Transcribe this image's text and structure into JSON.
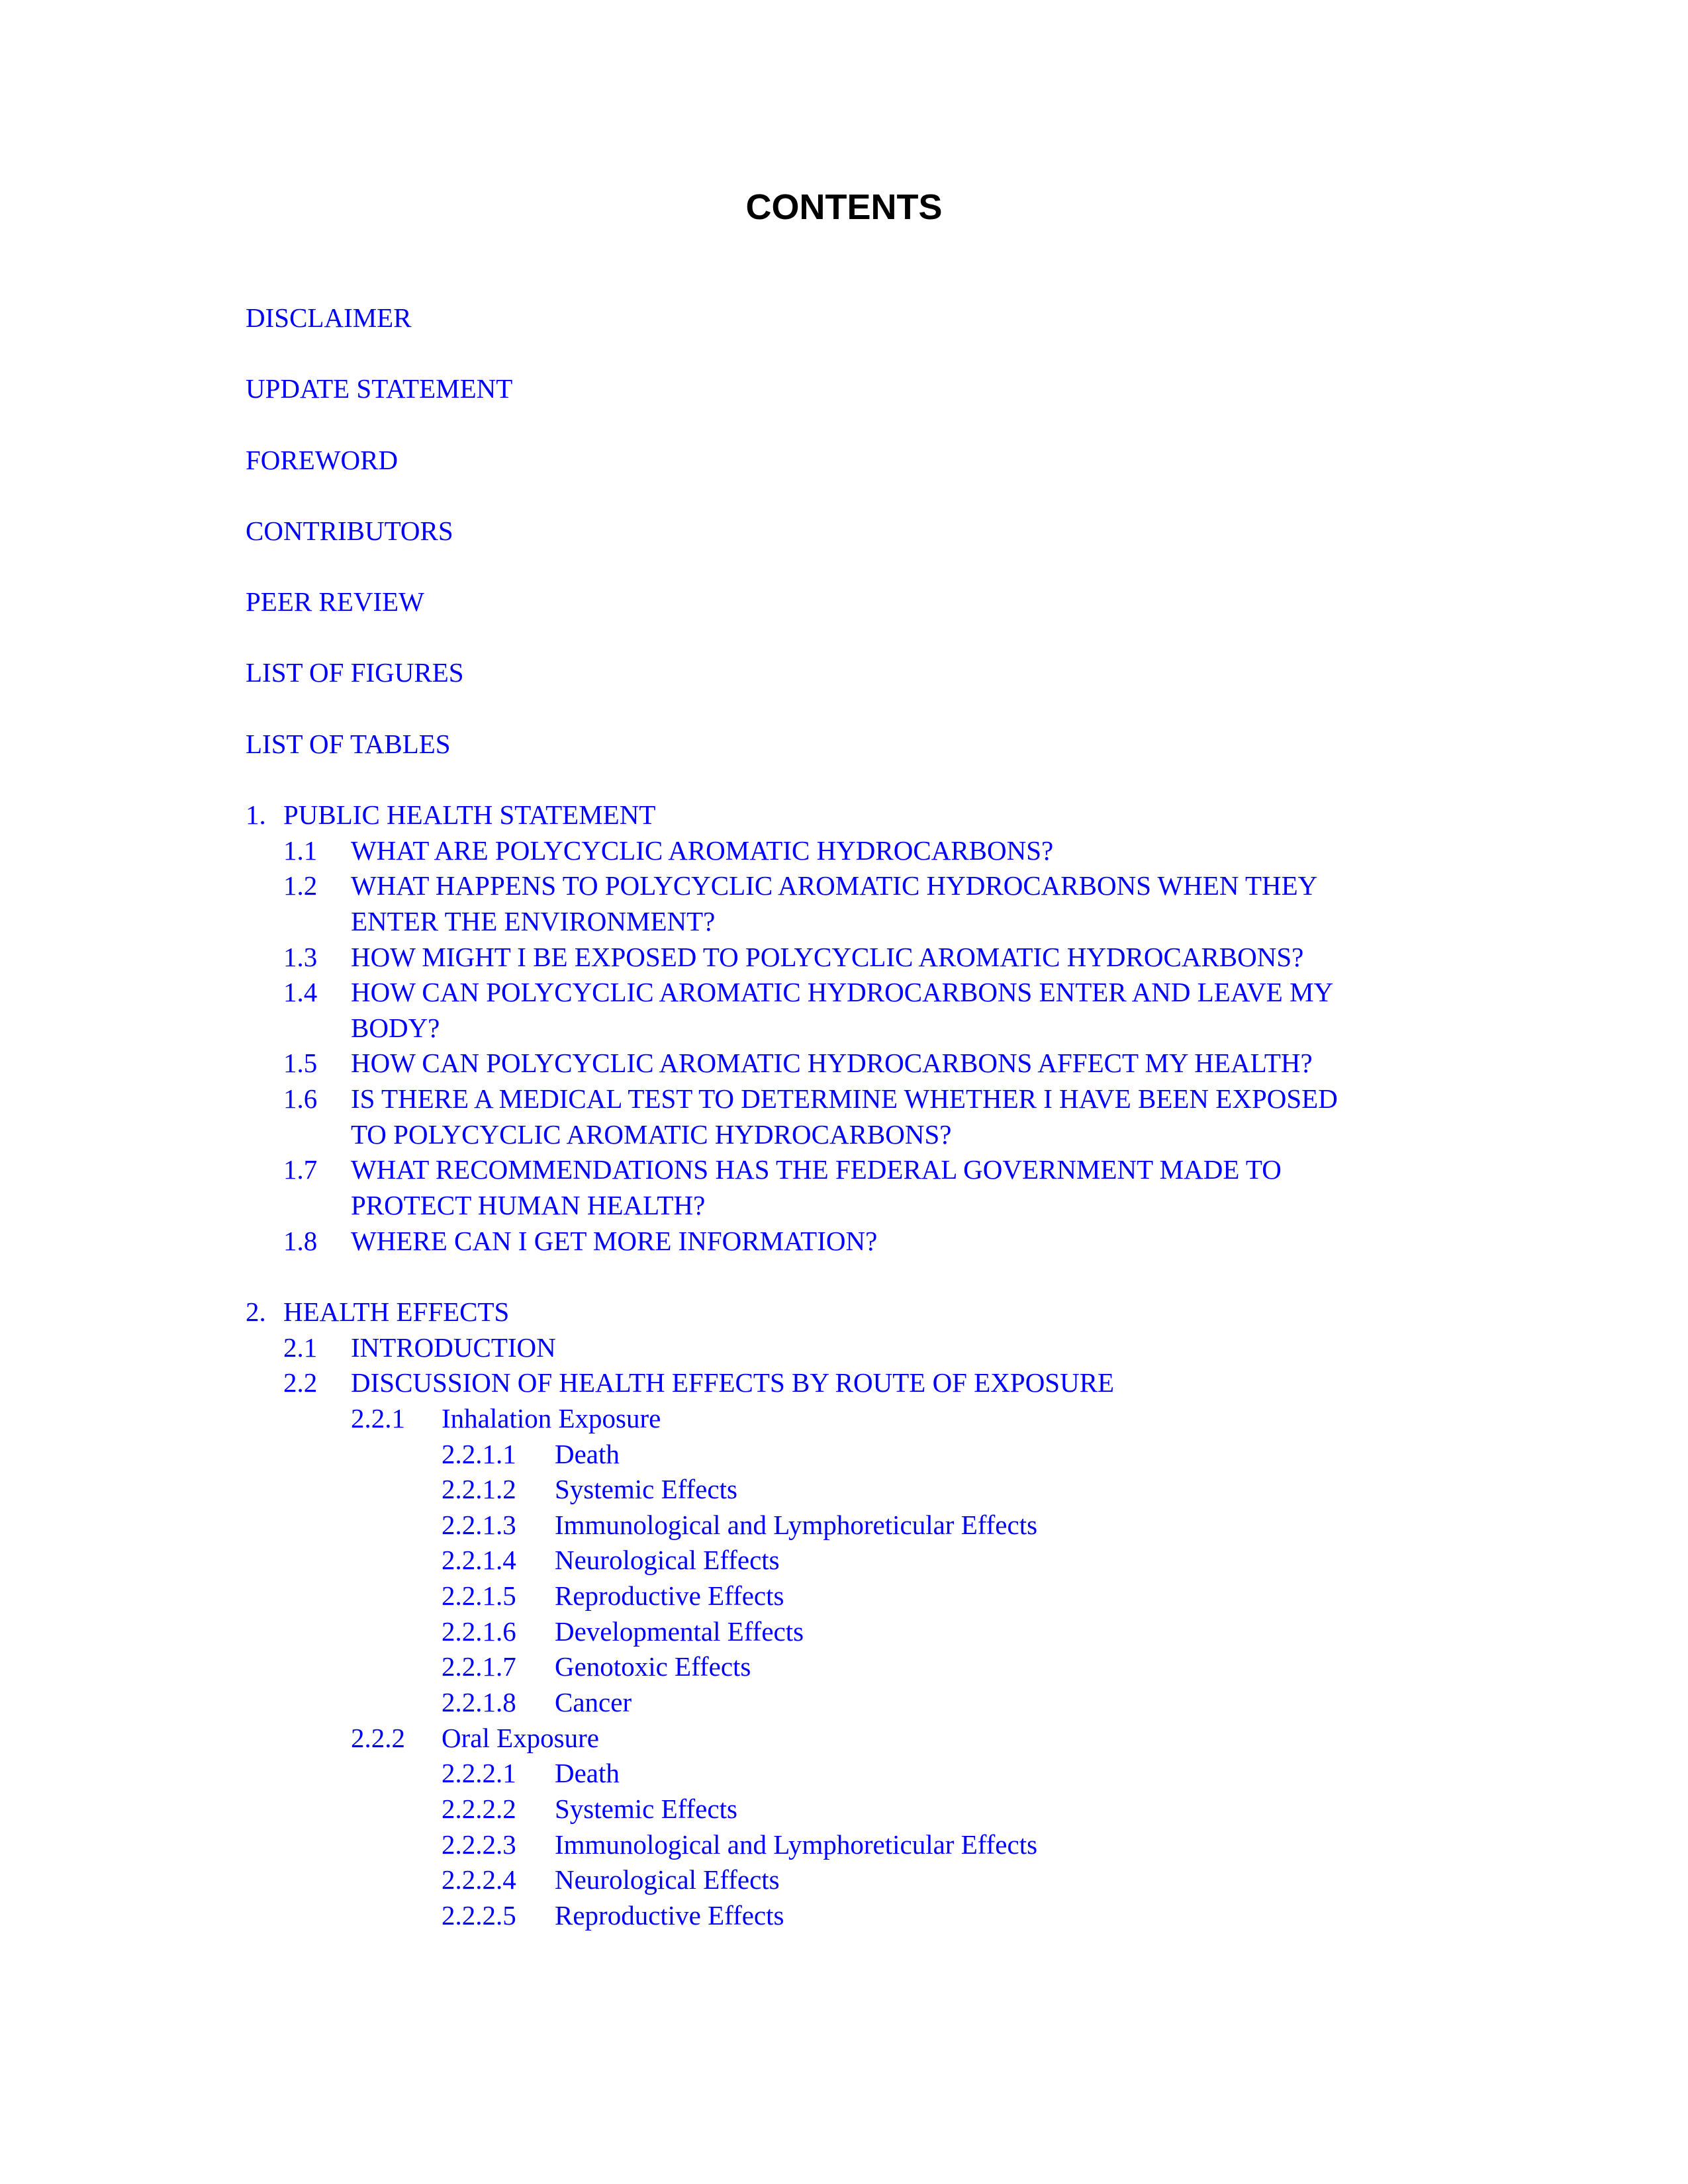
{
  "title": "CONTENTS",
  "link_color": "#0000ff",
  "front_matter": [
    "DISCLAIMER",
    "UPDATE STATEMENT",
    "FOREWORD",
    "CONTRIBUTORS",
    "PEER REVIEW",
    "LIST OF FIGURES",
    "LIST OF TABLES"
  ],
  "chapters": [
    {
      "num": "1.",
      "title": "PUBLIC HEALTH STATEMENT",
      "sections": [
        {
          "num": "1.1",
          "title_lines": [
            "WHAT ARE POLYCYCLIC AROMATIC HYDROCARBONS?"
          ]
        },
        {
          "num": "1.2",
          "title_lines": [
            "WHAT HAPPENS TO POLYCYCLIC AROMATIC HYDROCARBONS WHEN THEY",
            "ENTER THE ENVIRONMENT?"
          ]
        },
        {
          "num": "1.3",
          "title_lines": [
            "HOW MIGHT I BE EXPOSED TO POLYCYCLIC AROMATIC HYDROCARBONS?"
          ]
        },
        {
          "num": "1.4",
          "title_lines": [
            "HOW CAN POLYCYCLIC AROMATIC HYDROCARBONS ENTER AND LEAVE MY",
            "BODY?"
          ]
        },
        {
          "num": "1.5",
          "title_lines": [
            "HOW CAN POLYCYCLIC AROMATIC HYDROCARBONS AFFECT MY HEALTH?"
          ]
        },
        {
          "num": "1.6",
          "title_lines": [
            "IS THERE A MEDICAL TEST TO DETERMINE WHETHER I HAVE BEEN EXPOSED",
            "TO POLYCYCLIC AROMATIC HYDROCARBONS?"
          ]
        },
        {
          "num": "1.7",
          "title_lines": [
            "WHAT RECOMMENDATIONS HAS THE FEDERAL GOVERNMENT MADE TO",
            "PROTECT HUMAN HEALTH?"
          ]
        },
        {
          "num": "1.8",
          "title_lines": [
            "WHERE CAN I GET MORE INFORMATION?"
          ]
        }
      ]
    },
    {
      "num": "2.",
      "title": "HEALTH EFFECTS",
      "sections": [
        {
          "num": "2.1",
          "title_lines": [
            "INTRODUCTION"
          ]
        },
        {
          "num": "2.2",
          "title_lines": [
            "DISCUSSION OF HEALTH EFFECTS BY ROUTE OF EXPOSURE"
          ],
          "subsections": [
            {
              "num": "2.2.1",
              "title": "Inhalation Exposure",
              "items": [
                {
                  "num": "2.2.1.1",
                  "title": "Death"
                },
                {
                  "num": "2.2.1.2",
                  "title": "Systemic Effects"
                },
                {
                  "num": "2.2.1.3",
                  "title": "Immunological and Lymphoreticular Effects"
                },
                {
                  "num": "2.2.1.4",
                  "title": "Neurological Effects"
                },
                {
                  "num": "2.2.1.5",
                  "title": "Reproductive Effects"
                },
                {
                  "num": "2.2.1.6",
                  "title": "Developmental Effects"
                },
                {
                  "num": "2.2.1.7",
                  "title": "Genotoxic Effects"
                },
                {
                  "num": "2.2.1.8",
                  "title": "Cancer"
                }
              ]
            },
            {
              "num": "2.2.2",
              "title": "Oral Exposure",
              "items": [
                {
                  "num": "2.2.2.1",
                  "title": "Death"
                },
                {
                  "num": "2.2.2.2",
                  "title": "Systemic Effects"
                },
                {
                  "num": "2.2.2.3",
                  "title": "Immunological and Lymphoreticular Effects"
                },
                {
                  "num": "2.2.2.4",
                  "title": "Neurological Effects"
                },
                {
                  "num": "2.2.2.5",
                  "title": "Reproductive Effects"
                }
              ]
            }
          ]
        }
      ]
    }
  ]
}
